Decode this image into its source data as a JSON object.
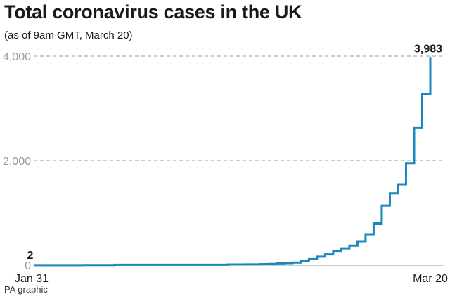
{
  "header": {
    "title": "Total coronavirus cases in the UK",
    "subtitle": "(as of 9am GMT, March 20)"
  },
  "footer": {
    "source": "PA graphic"
  },
  "chart_data": {
    "type": "line",
    "step": true,
    "title": "Total coronavirus cases in the UK",
    "subtitle": "(as of 9am GMT, March 20)",
    "xlabel": "",
    "ylabel": "",
    "x_start": "Jan 31",
    "x_end": "Mar 20",
    "x_tick_labels": [
      "Jan 31",
      "Mar 20"
    ],
    "ylim": [
      0,
      4000
    ],
    "y_ticks": [
      0,
      2000,
      4000
    ],
    "y_tick_labels": [
      "0",
      "2,000",
      "4,000"
    ],
    "grid": "dashed horizontal",
    "series_color": "#1b87bd",
    "series": [
      {
        "name": "",
        "x": [
          "Jan 31",
          "Feb 1",
          "Feb 2",
          "Feb 3",
          "Feb 4",
          "Feb 5",
          "Feb 6",
          "Feb 7",
          "Feb 8",
          "Feb 9",
          "Feb 10",
          "Feb 11",
          "Feb 12",
          "Feb 13",
          "Feb 14",
          "Feb 15",
          "Feb 16",
          "Feb 17",
          "Feb 18",
          "Feb 19",
          "Feb 20",
          "Feb 21",
          "Feb 22",
          "Feb 23",
          "Feb 24",
          "Feb 25",
          "Feb 26",
          "Feb 27",
          "Feb 28",
          "Feb 29",
          "Mar 1",
          "Mar 2",
          "Mar 3",
          "Mar 4",
          "Mar 5",
          "Mar 6",
          "Mar 7",
          "Mar 8",
          "Mar 9",
          "Mar 10",
          "Mar 11",
          "Mar 12",
          "Mar 13",
          "Mar 14",
          "Mar 15",
          "Mar 16",
          "Mar 17",
          "Mar 18",
          "Mar 19",
          "Mar 20"
        ],
        "values": [
          2,
          2,
          2,
          2,
          2,
          2,
          3,
          3,
          3,
          4,
          8,
          8,
          9,
          9,
          9,
          9,
          9,
          9,
          9,
          9,
          9,
          9,
          9,
          9,
          13,
          13,
          15,
          15,
          20,
          23,
          36,
          40,
          51,
          85,
          115,
          163,
          206,
          273,
          321,
          373,
          456,
          590,
          798,
          1140,
          1372,
          1543,
          1950,
          2626,
          3269,
          3983
        ]
      }
    ],
    "data_labels": [
      {
        "x": "Jan 31",
        "label": "2"
      },
      {
        "x": "Mar 20",
        "label": "3,983"
      }
    ]
  }
}
